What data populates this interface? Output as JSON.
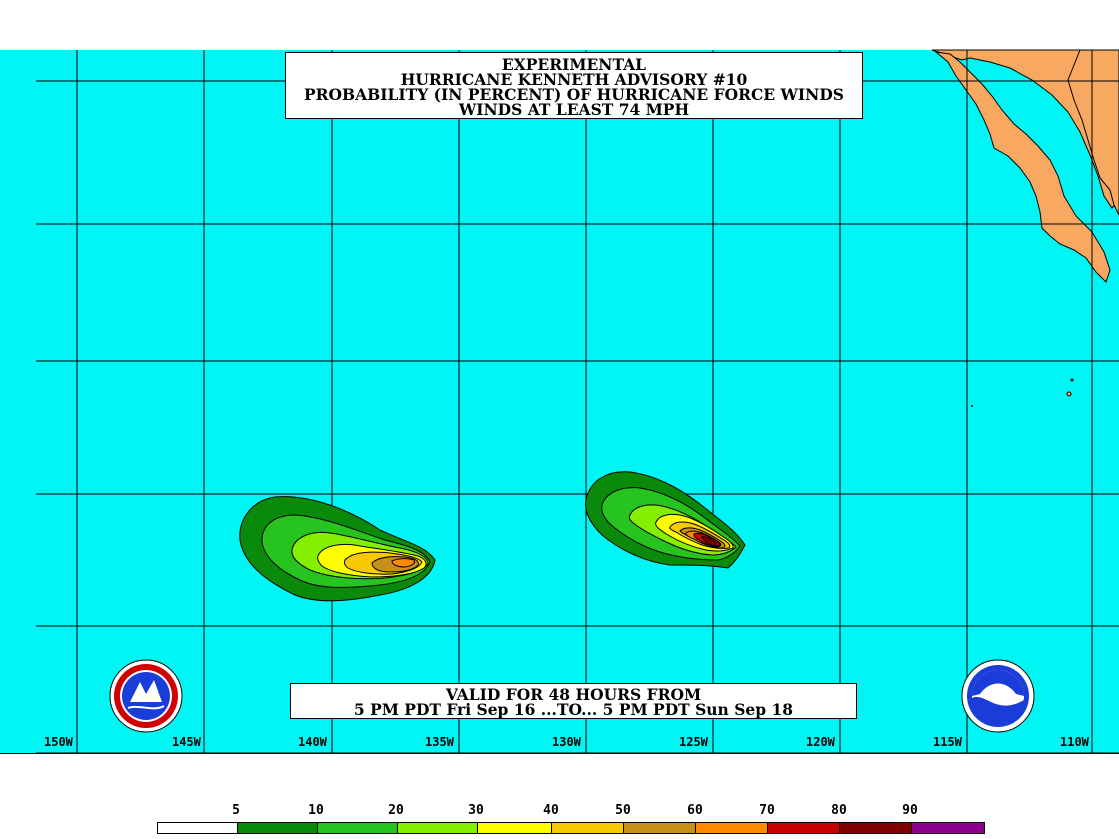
{
  "title": {
    "line1": "EXPERIMENTAL",
    "line2": "HURRICANE KENNETH ADVISORY #10",
    "line3": "PROBABILITY (IN PERCENT) OF HURRICANE FORCE WINDS",
    "line4": "WINDS AT LEAST 74 MPH"
  },
  "valid": {
    "line1": "VALID FOR 48 HOURS FROM",
    "line2": "5 PM PDT Fri Sep 16 ...TO... 5 PM PDT Sun Sep 18"
  },
  "longitude_labels": [
    "150W",
    "145W",
    "140W",
    "135W",
    "130W",
    "125W",
    "120W",
    "115W",
    "110W"
  ],
  "legend": {
    "labels": [
      "5",
      "10",
      "20",
      "30",
      "40",
      "50",
      "60",
      "70",
      "80",
      "90"
    ],
    "colors": [
      "#ffffff",
      "#0a8a0a",
      "#27c31f",
      "#84f000",
      "#ffff00",
      "#f8c800",
      "#c8901a",
      "#ff8a00",
      "#c80000",
      "#800000",
      "#8c008c"
    ]
  },
  "colors": {
    "ocean": "#00f5f5",
    "land": "#f8a860",
    "grid": "#000000"
  },
  "logos": {
    "nws": "National Weather Service seal",
    "noaa": "NOAA"
  }
}
